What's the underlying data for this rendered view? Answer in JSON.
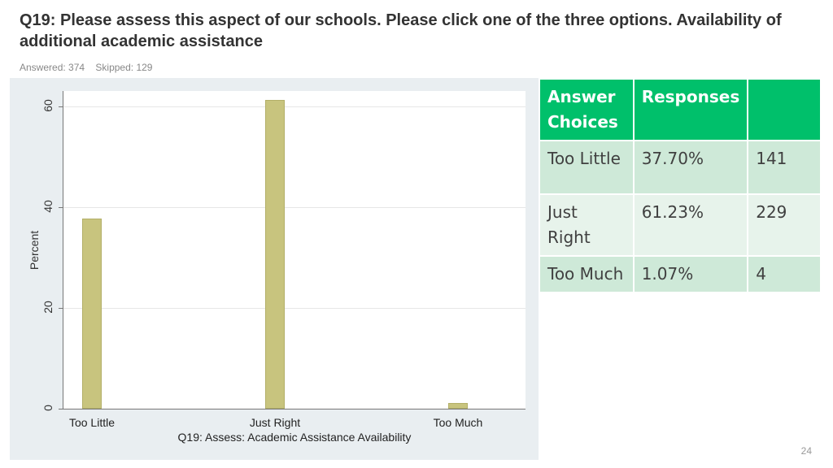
{
  "title": "Q19: Please assess this aspect of our schools. Please click one of the three options. Availability of additional academic assistance",
  "answered": "Answered: 374",
  "skipped": "Skipped: 129",
  "page_number": "24",
  "chart_data": {
    "type": "bar",
    "categories": [
      "Too Little",
      "Just Right",
      "Too Much"
    ],
    "values": [
      37.7,
      61.23,
      1.07
    ],
    "xlabel": "Q19: Assess: Academic Assistance Availability",
    "ylabel": "Percent",
    "ylim": [
      0,
      63
    ],
    "yticks": [
      "0",
      "20",
      "40",
      "60"
    ],
    "bar_color": "#c8c47e",
    "grid": true
  },
  "table": {
    "headers": [
      "Answer Choices",
      "Responses",
      ""
    ],
    "rows": [
      {
        "choice": "Too Little",
        "percent": "37.70%",
        "count": "141"
      },
      {
        "choice": "Just Right",
        "percent": "61.23%",
        "count": "229"
      },
      {
        "choice": "Too Much",
        "percent": "1.07%",
        "count": "4"
      }
    ],
    "header_color": "#00c06b"
  }
}
